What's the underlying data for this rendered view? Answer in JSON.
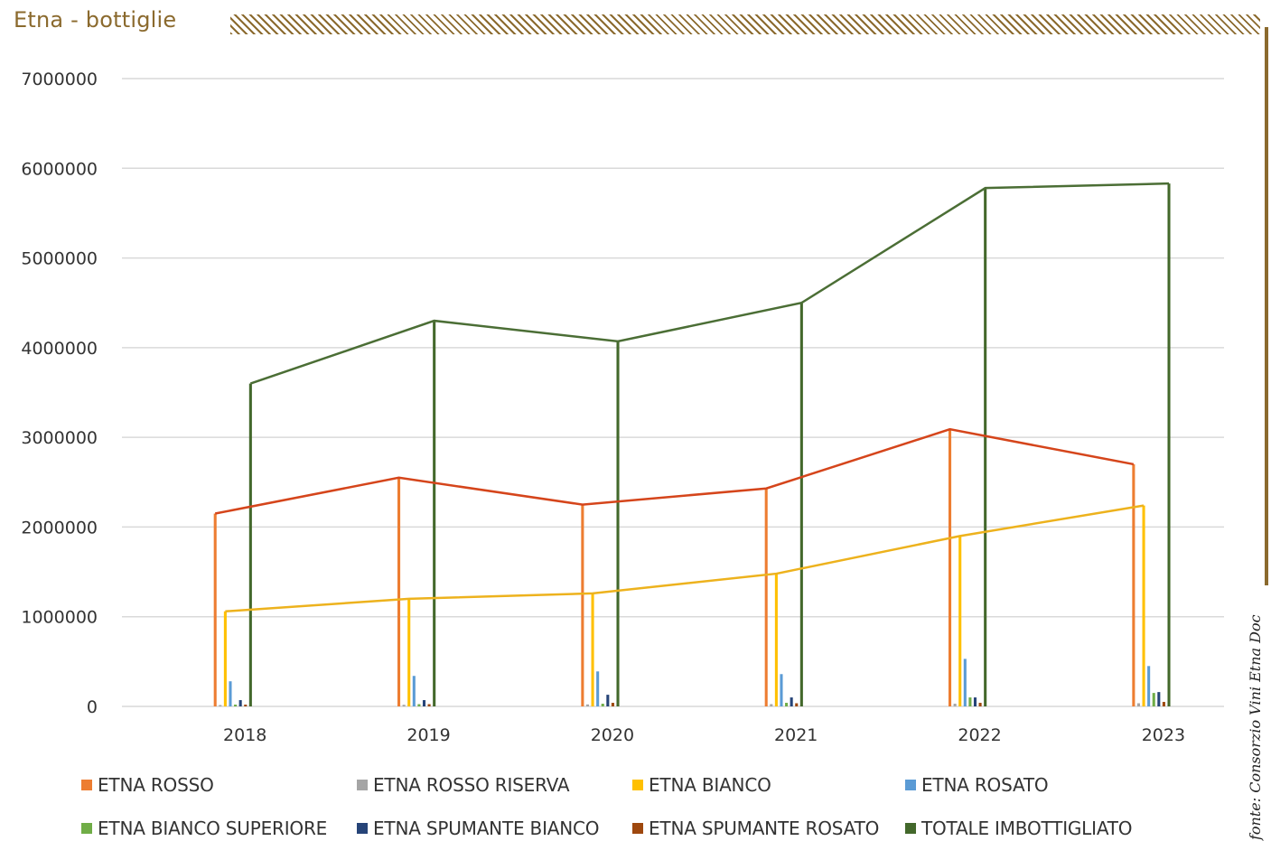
{
  "header": {
    "title": "Etna - bottiglie",
    "accent_color": "#8B6A2E"
  },
  "source_note": {
    "prefix": "fonte:",
    "text": "Consorzio Vini Etna Doc"
  },
  "chart_data": {
    "type": "bar",
    "categories": [
      "2018",
      "2019",
      "2020",
      "2021",
      "2022",
      "2023"
    ],
    "ylim": [
      0,
      7000000
    ],
    "yticks": [
      "0",
      "1000000",
      "2000000",
      "3000000",
      "4000000",
      "5000000",
      "6000000",
      "7000000"
    ],
    "grid": true,
    "legend_position": "bottom",
    "series": [
      {
        "name": "ETNA ROSSO",
        "color": "#ED7D31",
        "values": [
          2150000,
          2550000,
          2250000,
          2430000,
          3090000,
          2700000
        ]
      },
      {
        "name": "ETNA ROSSO RISERVA",
        "color": "#A5A5A5",
        "values": [
          15000,
          18000,
          22000,
          25000,
          30000,
          35000
        ]
      },
      {
        "name": "ETNA BIANCO",
        "color": "#FFC000",
        "values": [
          1060000,
          1200000,
          1260000,
          1480000,
          1900000,
          2240000
        ]
      },
      {
        "name": "ETNA ROSATO",
        "color": "#5B9BD5",
        "values": [
          280000,
          340000,
          390000,
          360000,
          530000,
          450000
        ]
      },
      {
        "name": "ETNA BIANCO SUPERIORE",
        "color": "#70AD47",
        "values": [
          20000,
          25000,
          30000,
          40000,
          100000,
          150000
        ]
      },
      {
        "name": "ETNA SPUMANTE BIANCO",
        "color": "#264478",
        "values": [
          70000,
          70000,
          130000,
          100000,
          100000,
          160000
        ]
      },
      {
        "name": "ETNA SPUMANTE ROSATO",
        "color": "#9E480E",
        "values": [
          20000,
          25000,
          40000,
          35000,
          40000,
          50000
        ]
      },
      {
        "name": "TOTALE IMBOTTIGLIATO",
        "color": "#43682B",
        "values": [
          3600000,
          4300000,
          4070000,
          4500000,
          5780000,
          5830000
        ]
      }
    ],
    "trend_lines": [
      {
        "series": "ETNA ROSSO",
        "color": "#D5451B"
      },
      {
        "series": "ETNA BIANCO",
        "color": "#EDB21D"
      },
      {
        "series": "TOTALE IMBOTTIGLIATO",
        "color": "#4B6E35"
      }
    ]
  }
}
